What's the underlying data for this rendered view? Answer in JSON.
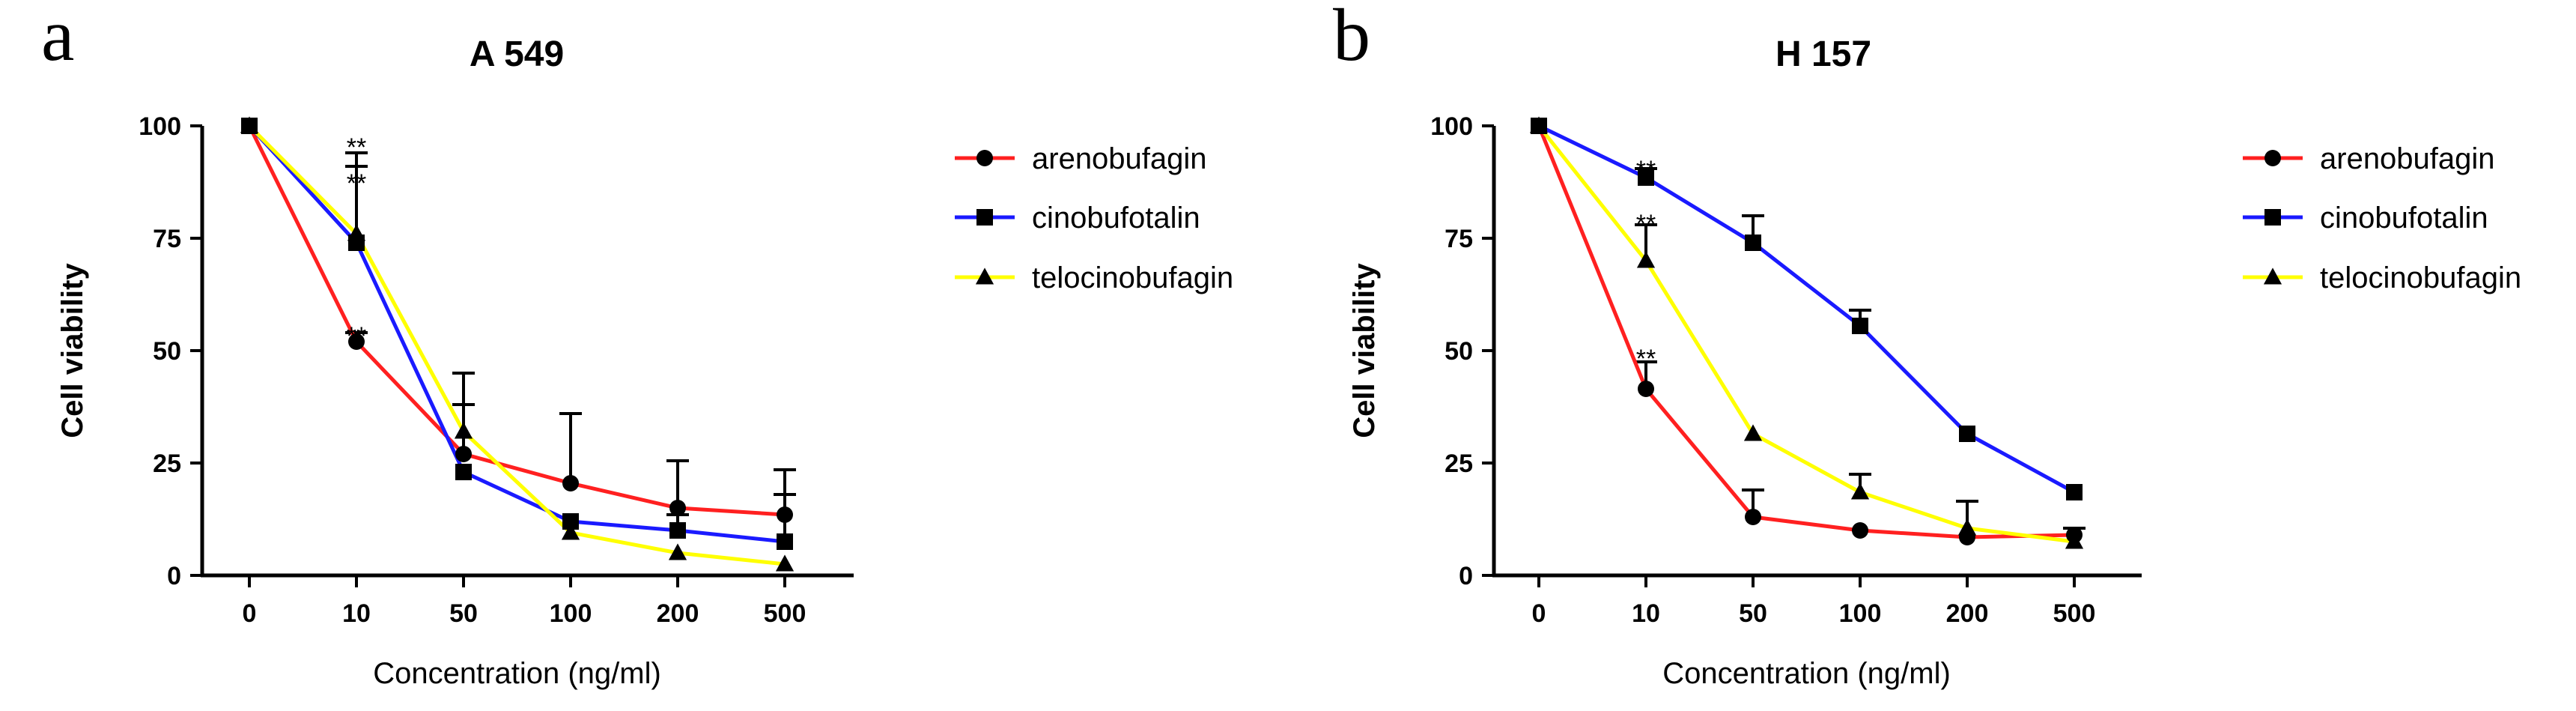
{
  "chart_data": [
    {
      "type": "line",
      "panel": "a",
      "title": "A 549",
      "xlabel": "Concentration (ng/ml)",
      "ylabel": "Cell viability",
      "categories": [
        "0",
        "10",
        "50",
        "100",
        "200",
        "500"
      ],
      "ylim": [
        0,
        100
      ],
      "yticks": [
        "0",
        "25",
        "50",
        "75",
        "100"
      ],
      "series": [
        {
          "name": "arenobufagin",
          "color": "#ff2020",
          "marker": "circle",
          "values": [
            100,
            52,
            27,
            20.5,
            15,
            13.5
          ],
          "errors": [
            0,
            2,
            11,
            15.5,
            10.5,
            10
          ]
        },
        {
          "name": "cinobufotalin",
          "color": "#1a1aff",
          "marker": "square",
          "values": [
            100,
            74,
            23,
            12,
            10,
            7.5
          ],
          "errors": [
            0,
            20,
            0,
            0,
            3.5,
            10.5
          ]
        },
        {
          "name": "telocinobufagin",
          "color": "#ffff00",
          "marker": "triangle",
          "values": [
            100,
            76,
            32,
            9.5,
            5,
            2.5
          ],
          "errors": [
            0,
            15,
            13,
            0,
            0,
            0
          ]
        }
      ],
      "annotations": [
        {
          "text": "**",
          "category": "10",
          "y": 97
        },
        {
          "text": "**",
          "category": "10",
          "y": 89
        },
        {
          "text": "**",
          "category": "10",
          "y": 55
        }
      ]
    },
    {
      "type": "line",
      "panel": "b",
      "title": "H 157",
      "xlabel": "Concentration (ng/ml)",
      "ylabel": "Cell viability",
      "categories": [
        "0",
        "10",
        "50",
        "100",
        "200",
        "500"
      ],
      "ylim": [
        0,
        100
      ],
      "yticks": [
        "0",
        "25",
        "50",
        "75",
        "100"
      ],
      "series": [
        {
          "name": "arenobufagin",
          "color": "#ff2020",
          "marker": "circle",
          "values": [
            100,
            41.5,
            13,
            10,
            8.5,
            9
          ],
          "errors": [
            0,
            6,
            6,
            0,
            0,
            0
          ]
        },
        {
          "name": "cinobufotalin",
          "color": "#1a1aff",
          "marker": "square",
          "values": [
            100,
            88.5,
            74,
            55.5,
            31.5,
            18.5
          ],
          "errors": [
            0,
            2,
            6,
            3.5,
            0,
            0
          ]
        },
        {
          "name": "telocinobufagin",
          "color": "#ffff00",
          "marker": "triangle",
          "values": [
            100,
            70,
            31.5,
            18.5,
            10.5,
            7.5
          ],
          "errors": [
            0,
            8,
            0,
            4,
            6,
            3
          ]
        }
      ],
      "annotations": [
        {
          "text": "**",
          "category": "10",
          "y": 92
        },
        {
          "text": "**",
          "category": "10",
          "y": 80
        },
        {
          "text": "**",
          "category": "10",
          "y": 50
        }
      ]
    }
  ]
}
